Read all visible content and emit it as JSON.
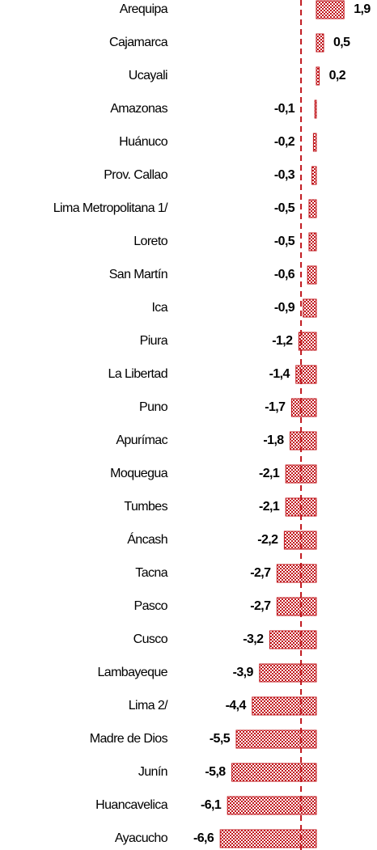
{
  "chart_data": {
    "type": "bar",
    "orientation": "horizontal",
    "categories": [
      "Arequipa",
      "Cajamarca",
      "Ucayali",
      "Amazonas",
      "Huánuco",
      "Prov. Callao",
      "Lima Metropolitana 1/",
      "Loreto",
      "San Martín",
      "Ica",
      "Piura",
      "La Libertad",
      "Puno",
      "Apurímac",
      "Moquegua",
      "Tumbes",
      "Áncash",
      "Tacna",
      "Pasco",
      "Cusco",
      "Lambayeque",
      "Lima 2/",
      "Madre de Dios",
      "Junín",
      "Huancavelica",
      "Ayacucho"
    ],
    "values": [
      1.9,
      0.5,
      0.2,
      -0.1,
      -0.2,
      -0.3,
      -0.5,
      -0.5,
      -0.6,
      -0.9,
      -1.2,
      -1.4,
      -1.7,
      -1.8,
      -2.1,
      -2.1,
      -2.2,
      -2.7,
      -2.7,
      -3.2,
      -3.9,
      -4.4,
      -5.5,
      -5.8,
      -6.1,
      -6.6
    ],
    "value_labels": [
      "1,9",
      "0,5",
      "0,2",
      "-0,1",
      "-0,2",
      "-0,3",
      "-0,5",
      "-0,5",
      "-0,6",
      "-0,9",
      "-1,2",
      "-1,4",
      "-1,7",
      "-1,8",
      "-2,1",
      "-2,1",
      "-2,2",
      "-2,7",
      "-2,7",
      "-3,2",
      "-3,9",
      "-4,4",
      "-5,5",
      "-5,8",
      "-6,1",
      "-6,6"
    ],
    "color": "#c0151b",
    "reference_line": -1.05,
    "xlim": [
      -7,
      2.5
    ]
  }
}
